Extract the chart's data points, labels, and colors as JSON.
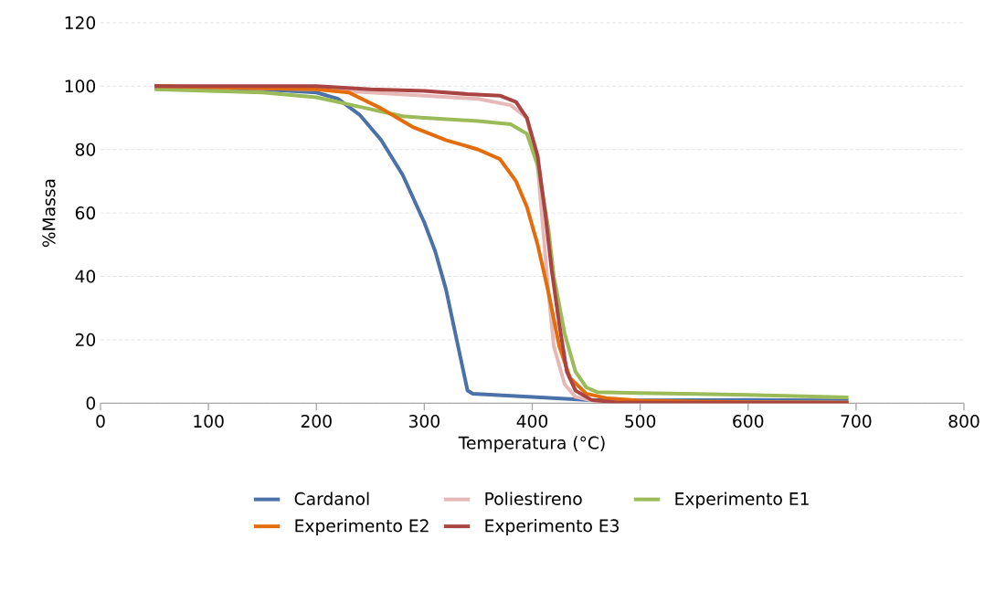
{
  "chart_data": {
    "type": "line",
    "xlabel": "Temperatura (°C)",
    "ylabel": "%Massa",
    "xlim": [
      0,
      800
    ],
    "xticks": [
      0,
      100,
      200,
      300,
      400,
      500,
      600,
      700,
      800
    ],
    "ylim": [
      0,
      120
    ],
    "yticks": [
      0,
      20,
      40,
      60,
      80,
      100,
      120
    ],
    "grid": "y",
    "legend": "bottom",
    "marker": "none",
    "line_style": "solid",
    "series": [
      {
        "name": "Cardanol",
        "color": "#4a72a8",
        "x": [
          50,
          100,
          150,
          200,
          220,
          240,
          260,
          280,
          300,
          310,
          320,
          330,
          340,
          345,
          400,
          450,
          500,
          600,
          693
        ],
        "values": [
          100,
          99.5,
          99,
          98,
          96,
          91,
          83,
          72,
          57,
          48,
          36,
          20,
          4,
          3,
          2,
          1,
          0.9,
          1.0,
          0.8
        ]
      },
      {
        "name": "Poliestireno",
        "color": "#e6b9b8",
        "x": [
          50,
          200,
          300,
          350,
          380,
          395,
          405,
          410,
          415,
          420,
          430,
          440,
          460,
          500,
          693
        ],
        "values": [
          100,
          99,
          97,
          96,
          94,
          90,
          75,
          55,
          35,
          18,
          6,
          2,
          0.5,
          0.3,
          0.2
        ]
      },
      {
        "name": "Experimento E1",
        "color": "#9bbb59",
        "x": [
          50,
          100,
          150,
          200,
          240,
          280,
          300,
          350,
          380,
          395,
          405,
          415,
          420,
          430,
          440,
          450,
          460,
          500,
          600,
          693
        ],
        "values": [
          99,
          98.5,
          98,
          96.5,
          93.5,
          90.5,
          90,
          89,
          88,
          85,
          75,
          55,
          40,
          22,
          10,
          5,
          3.5,
          3.2,
          2.6,
          1.8
        ]
      },
      {
        "name": "Experimento E2",
        "color": "#e46c0a",
        "x": [
          50,
          200,
          230,
          260,
          290,
          320,
          350,
          370,
          385,
          395,
          405,
          415,
          425,
          435,
          450,
          470,
          500,
          600,
          693
        ],
        "values": [
          100,
          99,
          98,
          93,
          87,
          83,
          80,
          77,
          70,
          62,
          50,
          35,
          18,
          8,
          3,
          1.5,
          0.8,
          0.3,
          0.2
        ]
      },
      {
        "name": "Experimento E3",
        "color": "#a94442",
        "x": [
          50,
          200,
          250,
          300,
          340,
          370,
          385,
          395,
          405,
          412,
          418,
          425,
          432,
          440,
          455,
          480,
          693
        ],
        "values": [
          100,
          100,
          99,
          98.5,
          97.5,
          97,
          95,
          90,
          78,
          60,
          42,
          25,
          10,
          4,
          1,
          0.2,
          0
        ]
      }
    ]
  }
}
